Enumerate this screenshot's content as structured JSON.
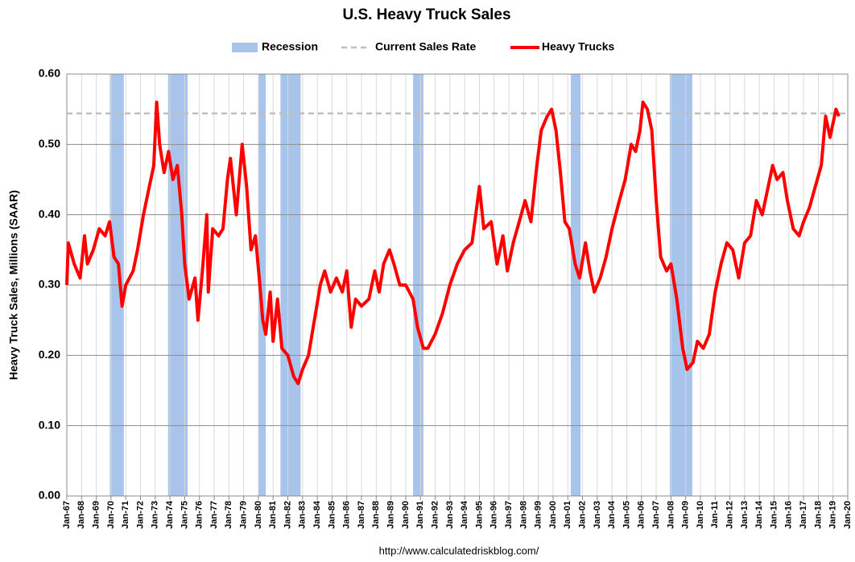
{
  "chart_data": {
    "type": "line",
    "title": "U.S. Heavy Truck Sales",
    "y_label": "Heavy Truck Sales, Millions (SAAR)",
    "source": "http://www.calculatedriskblog.com/",
    "recession_name": "Recession",
    "recession_color": "#a9c4eb",
    "recessions": [
      [
        1969.92,
        1970.87
      ],
      [
        1973.87,
        1975.2
      ],
      [
        1980.0,
        1980.5
      ],
      [
        1981.5,
        1982.87
      ],
      [
        1990.5,
        1991.2
      ],
      [
        2001.2,
        2001.87
      ],
      [
        2007.92,
        2009.45
      ]
    ],
    "reference_line": {
      "name": "Current Sales Rate",
      "value": 0.544,
      "color": "#bfbfbf"
    },
    "x": [
      1967.0,
      1967.1,
      1967.5,
      1967.9,
      1968.2,
      1968.4,
      1968.8,
      1969.2,
      1969.6,
      1969.9,
      1970.2,
      1970.5,
      1970.75,
      1971.0,
      1971.5,
      1971.8,
      1972.2,
      1972.6,
      1972.9,
      1973.1,
      1973.3,
      1973.6,
      1973.9,
      1974.2,
      1974.5,
      1974.8,
      1975.0,
      1975.3,
      1975.7,
      1975.9,
      1976.2,
      1976.5,
      1976.6,
      1976.9,
      1977.3,
      1977.6,
      1977.9,
      1978.1,
      1978.5,
      1978.9,
      1979.2,
      1979.5,
      1979.8,
      1980.1,
      1980.3,
      1980.5,
      1980.8,
      1981.0,
      1981.3,
      1981.6,
      1982.0,
      1982.4,
      1982.7,
      1983.0,
      1983.4,
      1983.8,
      1984.2,
      1984.5,
      1984.9,
      1985.3,
      1985.7,
      1986.0,
      1986.3,
      1986.6,
      1987.0,
      1987.5,
      1987.9,
      1988.2,
      1988.5,
      1988.9,
      1989.2,
      1989.6,
      1990.0,
      1990.5,
      1990.8,
      1991.2,
      1991.5,
      1992.0,
      1992.5,
      1993.0,
      1993.5,
      1994.0,
      1994.5,
      1995.0,
      1995.3,
      1995.8,
      1996.2,
      1996.6,
      1996.9,
      1997.3,
      1997.7,
      1998.1,
      1998.5,
      1998.9,
      1999.2,
      1999.6,
      1999.9,
      2000.2,
      2000.5,
      2000.8,
      2001.1,
      2001.5,
      2001.8,
      2002.2,
      2002.5,
      2002.8,
      2003.2,
      2003.6,
      2004.0,
      2004.5,
      2004.9,
      2005.3,
      2005.6,
      2005.9,
      2006.1,
      2006.4,
      2006.7,
      2007.0,
      2007.3,
      2007.7,
      2008.0,
      2008.4,
      2008.8,
      2009.1,
      2009.5,
      2009.8,
      2010.2,
      2010.6,
      2011.0,
      2011.4,
      2011.8,
      2012.2,
      2012.6,
      2013.0,
      2013.4,
      2013.8,
      2014.2,
      2014.6,
      2014.9,
      2015.2,
      2015.6,
      2015.9,
      2016.3,
      2016.7,
      2017.0,
      2017.4,
      2017.8,
      2018.2,
      2018.5,
      2018.8,
      2019.2,
      2019.4
    ],
    "series": [
      {
        "name": "Heavy Trucks",
        "color": "#ff0000",
        "values": [
          0.3,
          0.36,
          0.33,
          0.31,
          0.37,
          0.33,
          0.35,
          0.38,
          0.37,
          0.39,
          0.34,
          0.33,
          0.27,
          0.3,
          0.32,
          0.35,
          0.4,
          0.44,
          0.47,
          0.56,
          0.5,
          0.46,
          0.49,
          0.45,
          0.47,
          0.4,
          0.33,
          0.28,
          0.31,
          0.25,
          0.32,
          0.4,
          0.29,
          0.38,
          0.37,
          0.38,
          0.45,
          0.48,
          0.4,
          0.5,
          0.44,
          0.35,
          0.37,
          0.3,
          0.25,
          0.23,
          0.29,
          0.22,
          0.28,
          0.21,
          0.2,
          0.17,
          0.16,
          0.18,
          0.2,
          0.25,
          0.3,
          0.32,
          0.29,
          0.31,
          0.29,
          0.32,
          0.24,
          0.28,
          0.27,
          0.28,
          0.32,
          0.29,
          0.33,
          0.35,
          0.33,
          0.3,
          0.3,
          0.28,
          0.24,
          0.21,
          0.21,
          0.23,
          0.26,
          0.3,
          0.33,
          0.35,
          0.36,
          0.44,
          0.38,
          0.39,
          0.33,
          0.37,
          0.32,
          0.36,
          0.39,
          0.42,
          0.39,
          0.47,
          0.52,
          0.54,
          0.55,
          0.52,
          0.46,
          0.39,
          0.38,
          0.33,
          0.31,
          0.36,
          0.32,
          0.29,
          0.31,
          0.34,
          0.38,
          0.42,
          0.45,
          0.5,
          0.49,
          0.52,
          0.56,
          0.55,
          0.52,
          0.42,
          0.34,
          0.32,
          0.33,
          0.28,
          0.21,
          0.18,
          0.19,
          0.22,
          0.21,
          0.23,
          0.29,
          0.33,
          0.36,
          0.35,
          0.31,
          0.36,
          0.37,
          0.42,
          0.4,
          0.44,
          0.47,
          0.45,
          0.46,
          0.42,
          0.38,
          0.37,
          0.39,
          0.41,
          0.44,
          0.47,
          0.54,
          0.51,
          0.55,
          0.54
        ]
      }
    ],
    "xlim": [
      1967,
      2020
    ],
    "xticks": [
      {
        "value": 1967,
        "label": "Jan-67"
      },
      {
        "value": 1968,
        "label": "Jan-68"
      },
      {
        "value": 1969,
        "label": "Jan-69"
      },
      {
        "value": 1970,
        "label": "Jan-70"
      },
      {
        "value": 1971,
        "label": "Jan-71"
      },
      {
        "value": 1972,
        "label": "Jan-72"
      },
      {
        "value": 1973,
        "label": "Jan-73"
      },
      {
        "value": 1974,
        "label": "Jan-74"
      },
      {
        "value": 1975,
        "label": "Jan-75"
      },
      {
        "value": 1976,
        "label": "Jan-76"
      },
      {
        "value": 1977,
        "label": "Jan-77"
      },
      {
        "value": 1978,
        "label": "Jan-78"
      },
      {
        "value": 1979,
        "label": "Jan-79"
      },
      {
        "value": 1980,
        "label": "Jan-80"
      },
      {
        "value": 1981,
        "label": "Jan-81"
      },
      {
        "value": 1982,
        "label": "Jan-82"
      },
      {
        "value": 1983,
        "label": "Jan-83"
      },
      {
        "value": 1984,
        "label": "Jan-84"
      },
      {
        "value": 1985,
        "label": "Jan-85"
      },
      {
        "value": 1986,
        "label": "Jan-86"
      },
      {
        "value": 1987,
        "label": "Jan-87"
      },
      {
        "value": 1988,
        "label": "Jan-88"
      },
      {
        "value": 1989,
        "label": "Jan-89"
      },
      {
        "value": 1990,
        "label": "Jan-90"
      },
      {
        "value": 1991,
        "label": "Jan-91"
      },
      {
        "value": 1992,
        "label": "Jan-92"
      },
      {
        "value": 1993,
        "label": "Jan-93"
      },
      {
        "value": 1994,
        "label": "Jan-94"
      },
      {
        "value": 1995,
        "label": "Jan-95"
      },
      {
        "value": 1996,
        "label": "Jan-96"
      },
      {
        "value": 1997,
        "label": "Jan-97"
      },
      {
        "value": 1998,
        "label": "Jan-98"
      },
      {
        "value": 1999,
        "label": "Jan-99"
      },
      {
        "value": 2000,
        "label": "Jan-00"
      },
      {
        "value": 2001,
        "label": "Jan-01"
      },
      {
        "value": 2002,
        "label": "Jan-02"
      },
      {
        "value": 2003,
        "label": "Jan-03"
      },
      {
        "value": 2004,
        "label": "Jan-04"
      },
      {
        "value": 2005,
        "label": "Jan-05"
      },
      {
        "value": 2006,
        "label": "Jan-06"
      },
      {
        "value": 2007,
        "label": "Jan-07"
      },
      {
        "value": 2008,
        "label": "Jan-08"
      },
      {
        "value": 2009,
        "label": "Jan-09"
      },
      {
        "value": 2010,
        "label": "Jan-10"
      },
      {
        "value": 2011,
        "label": "Jan-11"
      },
      {
        "value": 2012,
        "label": "Jan-12"
      },
      {
        "value": 2013,
        "label": "Jan-13"
      },
      {
        "value": 2014,
        "label": "Jan-14"
      },
      {
        "value": 2015,
        "label": "Jan-15"
      },
      {
        "value": 2016,
        "label": "Jan-16"
      },
      {
        "value": 2017,
        "label": "Jan-17"
      },
      {
        "value": 2018,
        "label": "Jan-18"
      },
      {
        "value": 2019,
        "label": "Jan-19"
      },
      {
        "value": 2020,
        "label": "Jan-20"
      }
    ],
    "ylim": [
      0,
      0.6
    ],
    "yticks": [
      {
        "value": 0,
        "label": "0.00"
      },
      {
        "value": 0.1,
        "label": "0.10"
      },
      {
        "value": 0.2,
        "label": "0.20"
      },
      {
        "value": 0.3,
        "label": "0.30"
      },
      {
        "value": 0.4,
        "label": "0.40"
      },
      {
        "value": 0.5,
        "label": "0.50"
      },
      {
        "value": 0.6,
        "label": "0.60"
      }
    ],
    "grid": true
  }
}
